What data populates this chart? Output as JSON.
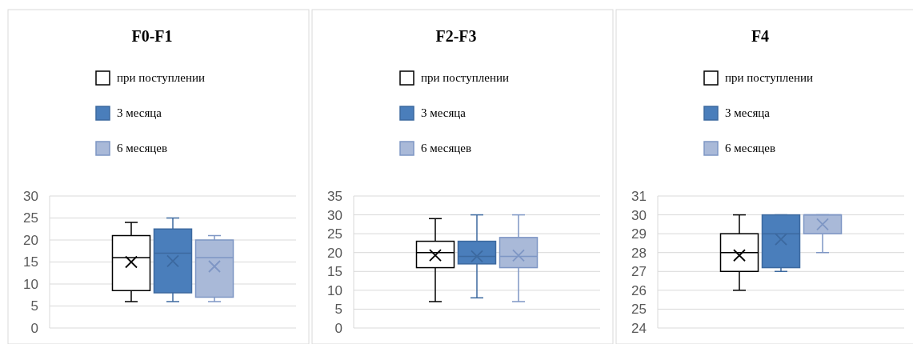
{
  "chart_data": [
    {
      "type": "box",
      "title": "F0-F1",
      "categories": [
        null
      ],
      "ylim": [
        0,
        30
      ],
      "yticks": [
        0,
        5,
        10,
        15,
        20,
        25,
        30
      ],
      "grid": "y",
      "legend": "top",
      "series": [
        {
          "name": "при поступлении",
          "color": "#ffffff",
          "boxes": [
            {
              "low": 6,
              "q1": 8.5,
              "median": 16,
              "q3": 21,
              "high": 24,
              "mean": 15
            }
          ]
        },
        {
          "name": "3 месяца",
          "color": "#4a7ebb",
          "boxes": [
            {
              "low": 6,
              "q1": 8,
              "median": 17,
              "q3": 22.5,
              "high": 25,
              "mean": 15.2
            }
          ]
        },
        {
          "name": "6 месяцев",
          "color": "#a9b9d8",
          "boxes": [
            {
              "low": 6,
              "q1": 7,
              "median": 16,
              "q3": 20,
              "high": 21,
              "mean": 14
            }
          ]
        }
      ]
    },
    {
      "type": "box",
      "title": "F2-F3",
      "categories": [
        null
      ],
      "ylim": [
        0,
        35
      ],
      "yticks": [
        0,
        5,
        10,
        15,
        20,
        25,
        30,
        35
      ],
      "grid": "y",
      "legend": "top",
      "series": [
        {
          "name": "при поступлении",
          "color": "#ffffff",
          "boxes": [
            {
              "low": 7,
              "q1": 16,
              "median": 20,
              "q3": 23,
              "high": 29,
              "mean": 19.3
            }
          ]
        },
        {
          "name": "3 месяца",
          "color": "#4a7ebb",
          "boxes": [
            {
              "low": 8,
              "q1": 17,
              "median": 19,
              "q3": 23,
              "high": 30,
              "mean": 19
            }
          ]
        },
        {
          "name": "6 месяцев",
          "color": "#a9b9d8",
          "boxes": [
            {
              "low": 7,
              "q1": 16,
              "median": 19,
              "q3": 24,
              "high": 30,
              "mean": 19.2
            }
          ]
        }
      ]
    },
    {
      "type": "box",
      "title": "F4",
      "categories": [
        null
      ],
      "ylim": [
        24,
        31
      ],
      "yticks": [
        24,
        25,
        26,
        27,
        28,
        29,
        30,
        31
      ],
      "grid": "y",
      "legend": "top",
      "series": [
        {
          "name": "при поступлении",
          "color": "#ffffff",
          "boxes": [
            {
              "low": 26,
              "q1": 27,
              "median": 28,
              "q3": 29,
              "high": 30,
              "mean": 27.85
            }
          ]
        },
        {
          "name": "3 месяца",
          "color": "#4a7ebb",
          "boxes": [
            {
              "low": 27,
              "q1": 27.2,
              "median": 29,
              "q3": 30,
              "high": 30,
              "mean": 28.7
            }
          ]
        },
        {
          "name": "6 месяцев",
          "color": "#a9b9d8",
          "boxes": [
            {
              "low": 28,
              "q1": 29,
              "median": 30,
              "q3": 30,
              "high": 30,
              "mean": 29.5
            }
          ]
        }
      ]
    }
  ]
}
